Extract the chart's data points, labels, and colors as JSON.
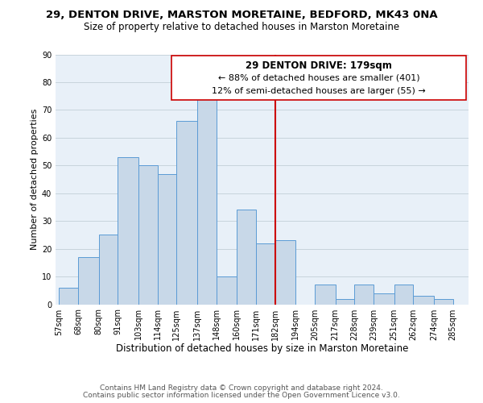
{
  "title": "29, DENTON DRIVE, MARSTON MORETAINE, BEDFORD, MK43 0NA",
  "subtitle": "Size of property relative to detached houses in Marston Moretaine",
  "xlabel": "Distribution of detached houses by size in Marston Moretaine",
  "ylabel": "Number of detached properties",
  "bar_left_edges": [
    57,
    68,
    80,
    91,
    103,
    114,
    125,
    137,
    148,
    160,
    171,
    182,
    194,
    205,
    217,
    228,
    239,
    251,
    262,
    274
  ],
  "bar_heights": [
    6,
    17,
    25,
    53,
    50,
    47,
    66,
    75,
    10,
    34,
    22,
    23,
    0,
    7,
    2,
    7,
    4,
    7,
    3,
    2
  ],
  "bar_widths": [
    11,
    12,
    11,
    12,
    11,
    11,
    12,
    11,
    12,
    11,
    11,
    12,
    11,
    12,
    11,
    11,
    12,
    11,
    12,
    11
  ],
  "bar_color": "#c8d8e8",
  "bar_edgecolor": "#5b9bd5",
  "tick_labels": [
    "57sqm",
    "68sqm",
    "80sqm",
    "91sqm",
    "103sqm",
    "114sqm",
    "125sqm",
    "137sqm",
    "148sqm",
    "160sqm",
    "171sqm",
    "182sqm",
    "194sqm",
    "205sqm",
    "217sqm",
    "228sqm",
    "239sqm",
    "251sqm",
    "262sqm",
    "274sqm",
    "285sqm"
  ],
  "tick_positions": [
    57,
    68,
    80,
    91,
    103,
    114,
    125,
    137,
    148,
    160,
    171,
    182,
    194,
    205,
    217,
    228,
    239,
    251,
    262,
    274,
    285
  ],
  "vline_x": 182,
  "vline_color": "#cc0000",
  "ylim": [
    0,
    90
  ],
  "yticks": [
    0,
    10,
    20,
    30,
    40,
    50,
    60,
    70,
    80,
    90
  ],
  "annotation_title": "29 DENTON DRIVE: 179sqm",
  "annotation_line1": "← 88% of detached houses are smaller (401)",
  "annotation_line2": "12% of semi-detached houses are larger (55) →",
  "annotation_box_color": "#ffffff",
  "annotation_box_edgecolor": "#cc0000",
  "footer_line1": "Contains HM Land Registry data © Crown copyright and database right 2024.",
  "footer_line2": "Contains public sector information licensed under the Open Government Licence v3.0.",
  "bg_color": "#ffffff",
  "grid_color": "#c8d4dc",
  "title_fontsize": 9.5,
  "subtitle_fontsize": 8.5,
  "xlabel_fontsize": 8.5,
  "ylabel_fontsize": 8.0,
  "tick_fontsize": 7.0,
  "annotation_title_fontsize": 8.5,
  "annotation_fontsize": 8.0,
  "footer_fontsize": 6.5
}
